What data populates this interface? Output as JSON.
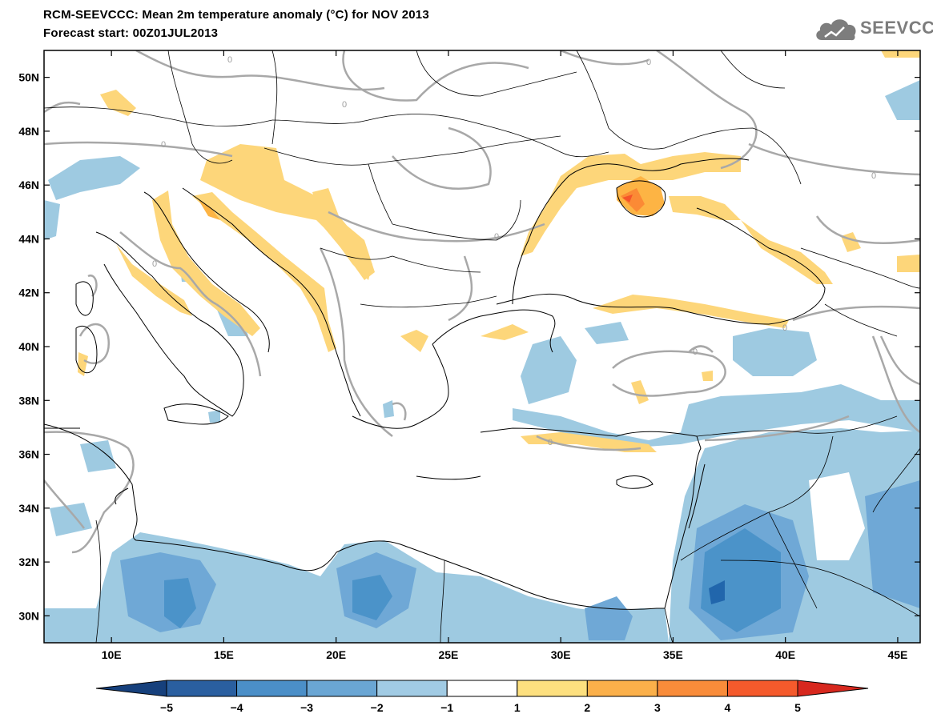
{
  "header": {
    "title": "RCM-SEEVCCC: Mean 2m temperature anomaly (°C) for NOV 2013",
    "subtitle": "Forecast start: 00Z01JUL2013",
    "logo_text": "SEEVCCC",
    "logo_icon": "cloud-icon"
  },
  "map": {
    "projection": "lat-lon",
    "lon_range": [
      7,
      46
    ],
    "lat_range": [
      29,
      51
    ],
    "lat_ticks": [
      "50N",
      "48N",
      "46N",
      "44N",
      "42N",
      "40N",
      "38N",
      "36N",
      "34N",
      "32N",
      "30N"
    ],
    "lat_tick_values": [
      50,
      48,
      46,
      44,
      42,
      40,
      38,
      36,
      34,
      32,
      30
    ],
    "lon_ticks": [
      "10E",
      "15E",
      "20E",
      "25E",
      "30E",
      "35E",
      "40E",
      "45E"
    ],
    "lon_tick_values": [
      10,
      15,
      20,
      25,
      30,
      35,
      40,
      45
    ],
    "contour_label": "0",
    "colors": {
      "border": "#000000",
      "contour_zero": "#a8a8a8",
      "minus5": "#08306b",
      "minus4": "#2166ac",
      "minus3": "#4b93c9",
      "minus2": "#6fa8d6",
      "minus1": "#9ecae1",
      "neutral": "#ffffff",
      "plus1": "#fdd67a",
      "plus2": "#fdb444",
      "plus3": "#fb8a35",
      "plus4": "#f5542a",
      "plus5": "#d7191c"
    }
  },
  "colorbar": {
    "labels": [
      "−5",
      "−4",
      "−3",
      "−2",
      "−1",
      "1",
      "2",
      "3",
      "4",
      "5"
    ],
    "bins": [
      "#2a5fa0",
      "#4b8fc8",
      "#6aa6d4",
      "#a1cbe4",
      "#ffffff",
      "#fde07f",
      "#fbb04a",
      "#f98c3a",
      "#f55a2c"
    ],
    "under_color": "#16407c",
    "over_color": "#d7281e"
  }
}
